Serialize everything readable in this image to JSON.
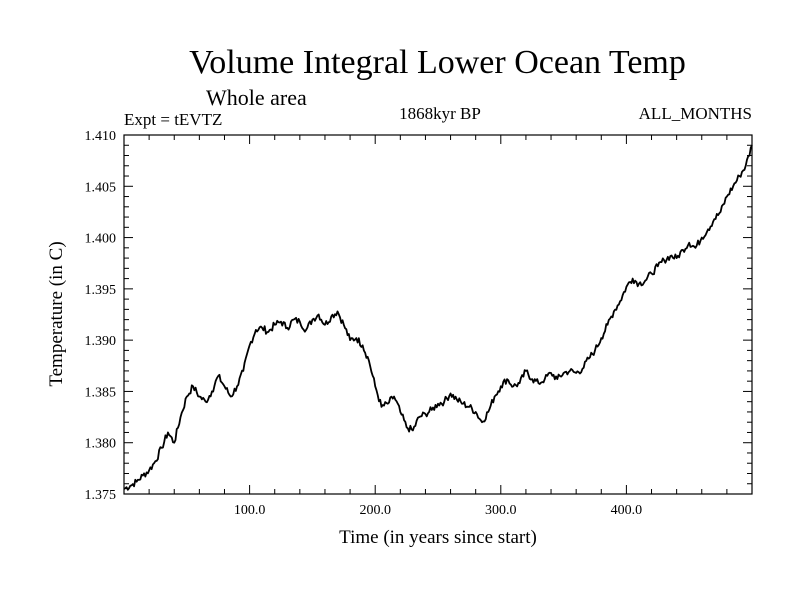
{
  "chart_data": {
    "type": "line",
    "title": "Volume Integral Lower Ocean Temp",
    "subtitle": "Whole area",
    "experiment": "Expt = tEVTZ",
    "period": "1868kyr BP",
    "months": "ALL_MONTHS",
    "xlabel": "Time (in years since start)",
    "ylabel": "Temperature (in C)",
    "xlim": [
      0,
      500
    ],
    "ylim": [
      1.375,
      1.41
    ],
    "xticks": [
      100,
      200,
      300,
      400
    ],
    "xtick_labels": [
      "100.0",
      "200.0",
      "300.0",
      "400.0"
    ],
    "yticks": [
      1.375,
      1.38,
      1.385,
      1.39,
      1.395,
      1.4,
      1.405,
      1.41
    ],
    "ytick_labels": [
      "1.375",
      "1.380",
      "1.385",
      "1.390",
      "1.395",
      "1.400",
      "1.405",
      "1.410"
    ],
    "series": [
      {
        "name": "Lower Ocean Temp",
        "x": [
          0,
          5,
          10,
          15,
          20,
          25,
          30,
          35,
          40,
          45,
          50,
          55,
          60,
          65,
          70,
          75,
          80,
          85,
          90,
          95,
          100,
          105,
          110,
          115,
          120,
          125,
          130,
          135,
          140,
          145,
          150,
          155,
          160,
          165,
          170,
          175,
          180,
          185,
          190,
          195,
          200,
          205,
          210,
          215,
          220,
          225,
          230,
          235,
          240,
          245,
          250,
          255,
          260,
          265,
          270,
          275,
          280,
          285,
          290,
          295,
          300,
          305,
          310,
          315,
          320,
          325,
          330,
          335,
          340,
          345,
          350,
          355,
          360,
          365,
          370,
          375,
          380,
          385,
          390,
          395,
          400,
          405,
          410,
          415,
          420,
          425,
          430,
          435,
          440,
          445,
          450,
          455,
          460,
          465,
          470,
          475,
          480,
          485,
          490,
          495,
          500
        ],
        "values": [
          1.3755,
          1.3758,
          1.3762,
          1.3768,
          1.3773,
          1.3782,
          1.3795,
          1.381,
          1.38,
          1.3825,
          1.3845,
          1.3855,
          1.3845,
          1.384,
          1.385,
          1.3865,
          1.3855,
          1.3845,
          1.3855,
          1.387,
          1.3895,
          1.391,
          1.3912,
          1.3908,
          1.3915,
          1.3918,
          1.3912,
          1.392,
          1.3918,
          1.391,
          1.392,
          1.3925,
          1.3915,
          1.3923,
          1.3928,
          1.3915,
          1.39,
          1.3902,
          1.3895,
          1.388,
          1.3855,
          1.3835,
          1.3838,
          1.3845,
          1.383,
          1.3815,
          1.3812,
          1.3825,
          1.3828,
          1.3832,
          1.3838,
          1.384,
          1.3848,
          1.3842,
          1.3838,
          1.3835,
          1.383,
          1.382,
          1.383,
          1.3845,
          1.3855,
          1.3862,
          1.3855,
          1.3858,
          1.387,
          1.3862,
          1.3858,
          1.3862,
          1.3868,
          1.3862,
          1.3868,
          1.387,
          1.3868,
          1.3872,
          1.3882,
          1.389,
          1.3902,
          1.3915,
          1.3928,
          1.3938,
          1.3952,
          1.396,
          1.3955,
          1.3958,
          1.3965,
          1.3972,
          1.3978,
          1.3982,
          1.398,
          1.3988,
          1.3995,
          1.399,
          1.4,
          1.4008,
          1.4018,
          1.4025,
          1.404,
          1.405,
          1.406,
          1.407,
          1.409
        ]
      }
    ]
  },
  "colors": {
    "line": "#000000",
    "axis": "#000000",
    "background": "#ffffff"
  }
}
